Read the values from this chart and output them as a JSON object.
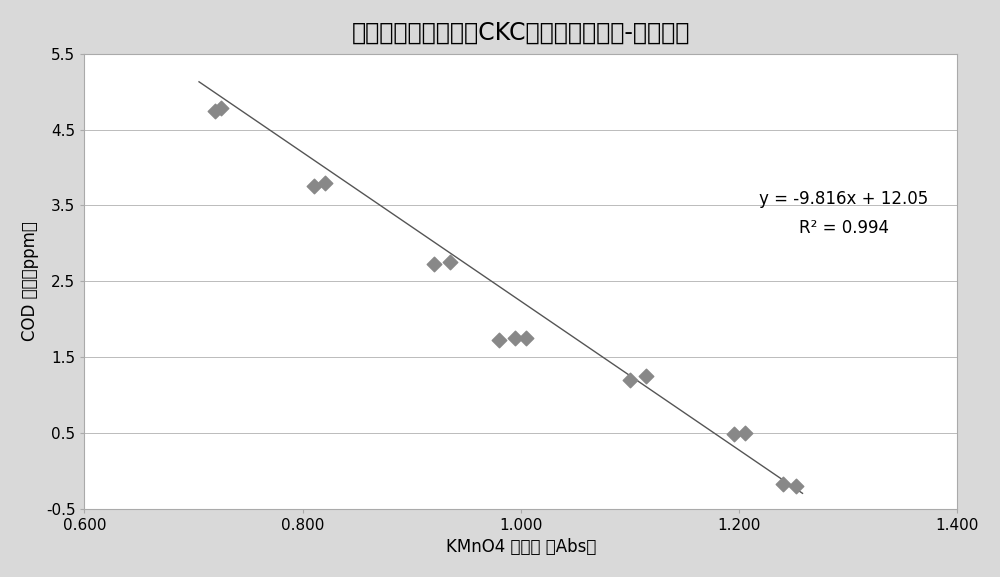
{
  "title": "直接高锰酸钾比色法CKC测高锰酸钾指数-线性曲线",
  "xlabel": "KMnO4 吸光度 （Abs）",
  "ylabel": "COD 浓度（ppm）",
  "scatter_x": [
    0.72,
    0.725,
    0.81,
    0.82,
    0.92,
    0.935,
    0.98,
    0.995,
    1.005,
    1.1,
    1.115,
    1.195,
    1.205,
    1.24,
    1.252
  ],
  "scatter_y": [
    4.75,
    4.78,
    3.75,
    3.8,
    2.72,
    2.75,
    1.73,
    1.75,
    1.75,
    1.2,
    1.25,
    0.48,
    0.5,
    -0.18,
    -0.2
  ],
  "line_x": [
    0.705,
    1.258
  ],
  "slope": -9.816,
  "intercept": 12.05,
  "equation_text": "y = -9.816x + 12.05",
  "r2_text": "R² = 0.994",
  "xlim": [
    0.6,
    1.4
  ],
  "ylim": [
    -0.5,
    5.5
  ],
  "xticks": [
    0.6,
    0.8,
    1.0,
    1.2,
    1.4
  ],
  "xtick_labels": [
    "0.600",
    "0.800",
    "1.000",
    "1.200",
    "1.400"
  ],
  "yticks": [
    -0.5,
    0.5,
    1.5,
    2.5,
    3.5,
    4.5,
    5.5
  ],
  "ytick_labels": [
    "-0.5",
    "0.5",
    "1.5",
    "2.5",
    "3.5",
    "4.5",
    "5.5"
  ],
  "grid_yticks": [
    -0.5,
    0.5,
    1.5,
    2.5,
    3.5,
    4.5,
    5.5
  ],
  "marker_color": "#888888",
  "line_color": "#555555",
  "bg_color": "#d9d9d9",
  "plot_bg_color": "#ffffff",
  "title_fontsize": 17,
  "label_fontsize": 12,
  "tick_fontsize": 11,
  "annot_fontsize": 12
}
